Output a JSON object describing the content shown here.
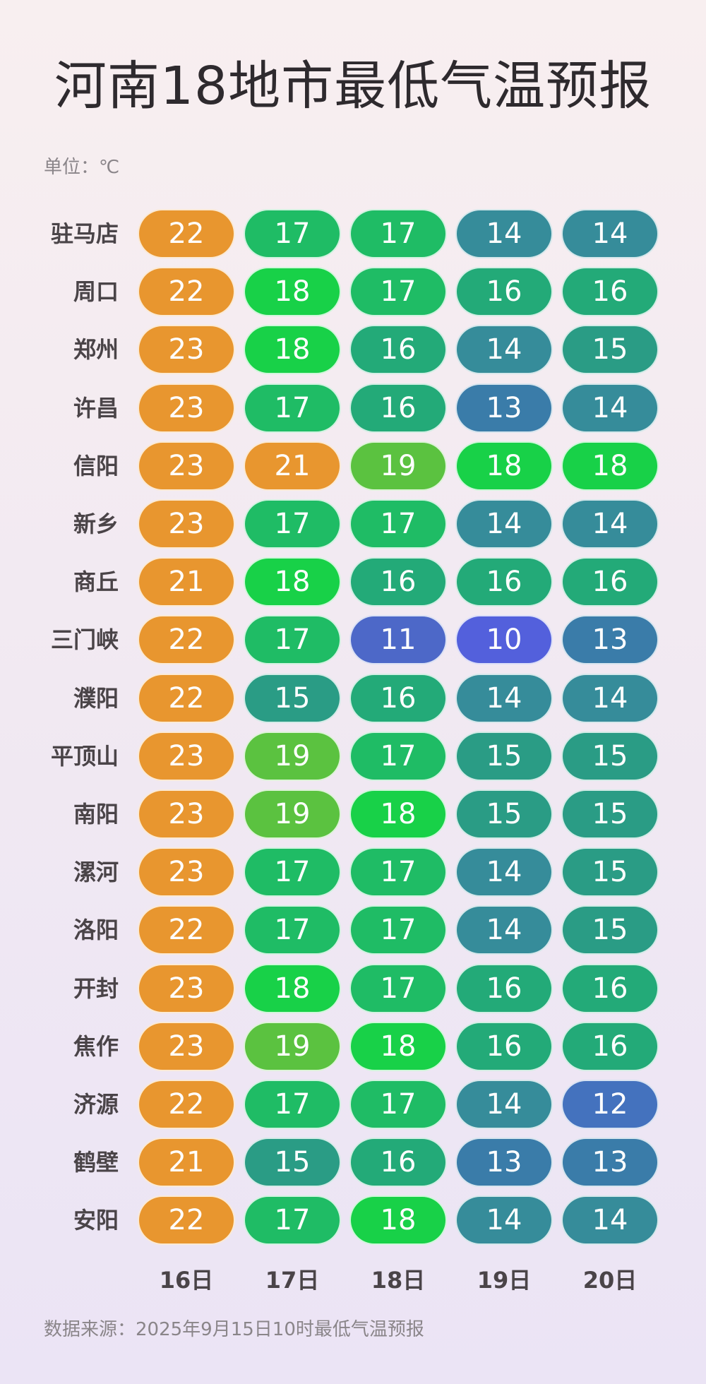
{
  "chart_data": {
    "type": "heatmap",
    "title": "河南18地市最低气温预报",
    "unit_label": "单位：℃",
    "footer": "数据来源：2025年9月15日10时最低气温预报",
    "columns": [
      "16日",
      "17日",
      "18日",
      "19日",
      "20日"
    ],
    "rows": [
      {
        "city": "驻马店",
        "values": [
          22,
          17,
          17,
          14,
          14
        ]
      },
      {
        "city": "周口",
        "values": [
          22,
          18,
          17,
          16,
          16
        ]
      },
      {
        "city": "郑州",
        "values": [
          23,
          18,
          16,
          14,
          15
        ]
      },
      {
        "city": "许昌",
        "values": [
          23,
          17,
          16,
          13,
          14
        ]
      },
      {
        "city": "信阳",
        "values": [
          23,
          21,
          19,
          18,
          18
        ]
      },
      {
        "city": "新乡",
        "values": [
          23,
          17,
          17,
          14,
          14
        ]
      },
      {
        "city": "商丘",
        "values": [
          21,
          18,
          16,
          16,
          16
        ]
      },
      {
        "city": "三门峡",
        "values": [
          22,
          17,
          11,
          10,
          13
        ]
      },
      {
        "city": "濮阳",
        "values": [
          22,
          15,
          16,
          14,
          14
        ]
      },
      {
        "city": "平顶山",
        "values": [
          23,
          19,
          17,
          15,
          15
        ]
      },
      {
        "city": "南阳",
        "values": [
          23,
          19,
          18,
          15,
          15
        ]
      },
      {
        "city": "漯河",
        "values": [
          23,
          17,
          17,
          14,
          15
        ]
      },
      {
        "city": "洛阳",
        "values": [
          22,
          17,
          17,
          14,
          15
        ]
      },
      {
        "city": "开封",
        "values": [
          23,
          18,
          17,
          16,
          16
        ]
      },
      {
        "city": "焦作",
        "values": [
          23,
          19,
          18,
          16,
          16
        ]
      },
      {
        "city": "济源",
        "values": [
          22,
          17,
          17,
          14,
          12
        ]
      },
      {
        "city": "鹤壁",
        "values": [
          21,
          15,
          16,
          13,
          13
        ]
      },
      {
        "city": "安阳",
        "values": [
          22,
          17,
          18,
          14,
          14
        ]
      }
    ],
    "color_scale": {
      "10": "#5360dc",
      "11": "#4d68c8",
      "12": "#4472be",
      "13": "#3a7ca9",
      "14": "#368c9a",
      "15": "#2a9c85",
      "16": "#23aa78",
      "17": "#1fbc65",
      "18": "#18d148",
      "19": "#5bc240",
      "20": "#e8962f",
      "21": "#e8962f",
      "22": "#e8962f",
      "23": "#e8962f"
    }
  }
}
